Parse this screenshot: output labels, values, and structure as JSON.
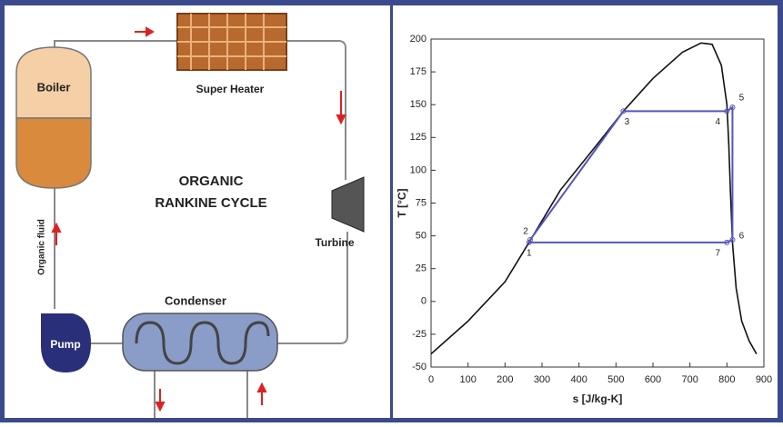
{
  "diagram": {
    "boiler": "Boiler",
    "super_heater": "Super Heater",
    "title_lines": [
      "ORGANIC",
      "RANKINE CYCLE"
    ],
    "turbine": "Turbine",
    "condenser": "Condenser",
    "pump": "Pump",
    "fluid": "Organic fluid"
  },
  "chart_data": {
    "type": "line",
    "xlabel": "s [J/kg-K]",
    "ylabel": "T [°C]",
    "xlim": [
      0,
      900
    ],
    "ylim": [
      -50,
      200
    ],
    "xticks": [
      0,
      100,
      200,
      300,
      400,
      500,
      600,
      700,
      800,
      900
    ],
    "yticks": [
      -50,
      -25,
      0,
      25,
      50,
      75,
      100,
      125,
      150,
      175,
      200
    ],
    "series": [
      {
        "color": "#111111",
        "x": [
          0,
          100,
          200,
          265,
          350,
          450,
          520,
          600,
          680,
          730,
          760,
          785,
          800,
          805,
          810,
          815,
          825,
          840,
          860,
          880
        ],
        "values": [
          -40,
          -15,
          15,
          45,
          85,
          120,
          145,
          170,
          190,
          197,
          196,
          180,
          150,
          120,
          80,
          45,
          10,
          -15,
          -30,
          -40
        ]
      },
      {
        "color": "#5555bb",
        "x": [
          265,
          268,
          520,
          800,
          815,
          815,
          800,
          265
        ],
        "values": [
          45,
          47,
          145,
          145,
          148,
          47,
          45,
          45
        ]
      }
    ],
    "points": [
      {
        "label": "1",
        "x": 265,
        "y": 45
      },
      {
        "label": "2",
        "x": 268,
        "y": 47
      },
      {
        "label": "3",
        "x": 520,
        "y": 145
      },
      {
        "label": "4",
        "x": 800,
        "y": 145
      },
      {
        "label": "5",
        "x": 815,
        "y": 148
      },
      {
        "label": "6",
        "x": 815,
        "y": 47
      },
      {
        "label": "7",
        "x": 800,
        "y": 45
      }
    ]
  }
}
